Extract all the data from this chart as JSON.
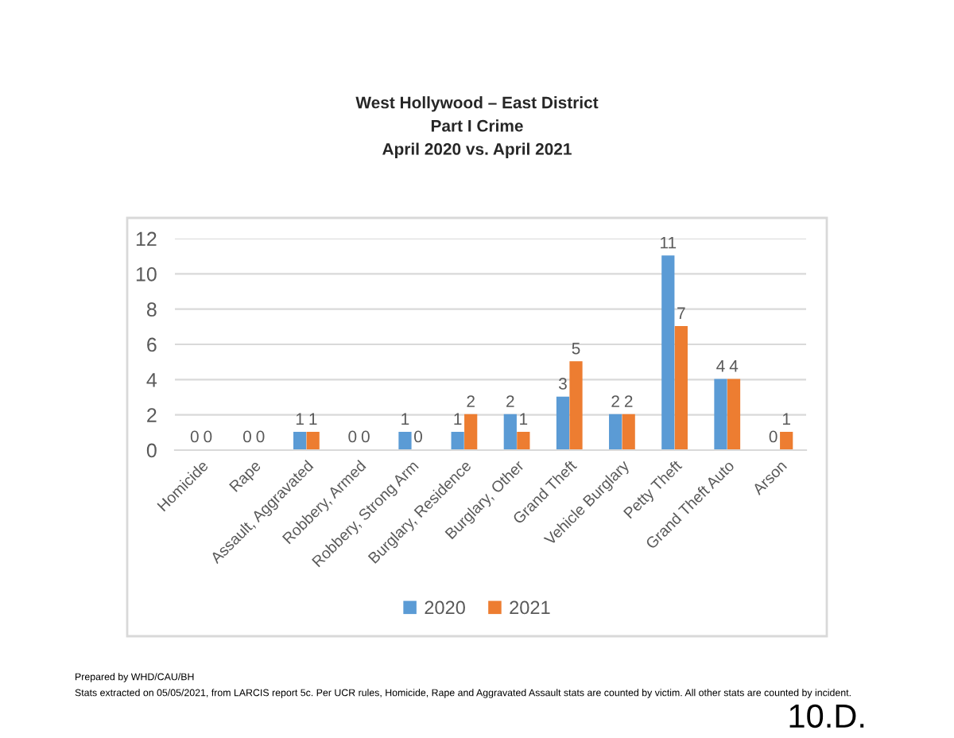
{
  "chart_data": {
    "type": "bar",
    "title": "West Hollywood – East District\nPart I Crime\nApril 2020 vs. April 2021",
    "categories": [
      "Homicide",
      "Rape",
      "Assault, Aggravated",
      "Robbery, Armed",
      "Robbery, Strong Arm",
      "Burglary, Residence",
      "Burglary, Other",
      "Grand Theft",
      "Vehicle Burglary",
      "Petty Theft",
      "Grand Theft Auto",
      "Arson"
    ],
    "series": [
      {
        "name": "2020",
        "color": "#5b9bd5",
        "values": [
          0,
          0,
          1,
          0,
          1,
          1,
          2,
          3,
          2,
          11,
          4,
          0
        ]
      },
      {
        "name": "2021",
        "color": "#ed7d31",
        "values": [
          0,
          0,
          1,
          0,
          0,
          2,
          1,
          5,
          2,
          7,
          4,
          1
        ]
      }
    ],
    "ylim": [
      0,
      12
    ],
    "yticks": [
      0,
      2,
      4,
      6,
      8,
      10,
      12
    ],
    "grid": "y",
    "legend": "bottom",
    "data_labels": true,
    "annotations": [
      "Prepared by WHD/CAU/BH",
      "Stats extracted on 05/05/2021, from LARCIS report 5c. Per UCR rules, Homicide, Rape and Aggravated Assault stats are counted by victim. All other stats are counted by incident.",
      "10.D."
    ]
  }
}
